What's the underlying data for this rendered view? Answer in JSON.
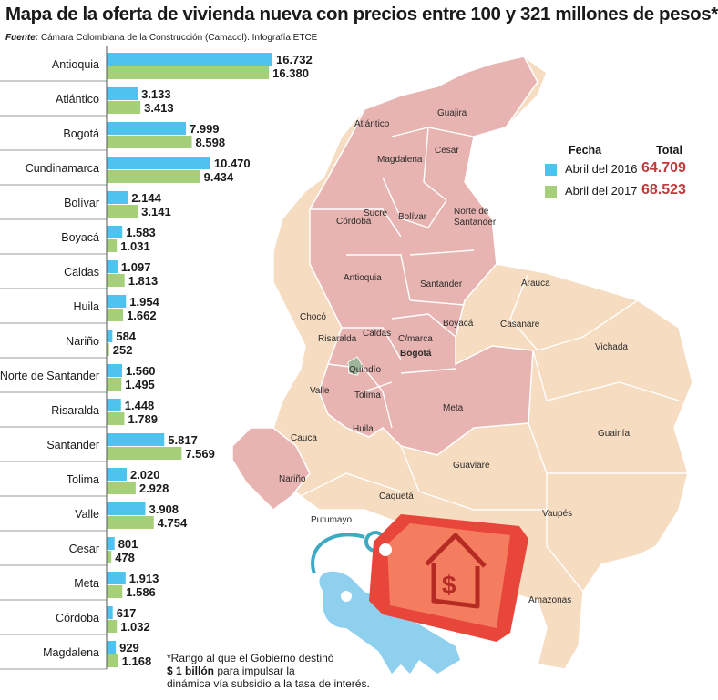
{
  "title": "Mapa de la oferta de vivienda nueva con precios entre 100 y 321 millones de pesos*",
  "source_label": "Fuente:",
  "source_text": "Cámara Colombiana de la Construcción (Camacol). Infografía ETCE",
  "legend": {
    "heading_fecha": "Fecha",
    "heading_total": "Total",
    "items": [
      {
        "label": "Abril del 2016",
        "total": "64.709",
        "color": "#4fc3ef"
      },
      {
        "label": "Abril del 2017",
        "total": "68.523",
        "color": "#a6cf7a"
      }
    ]
  },
  "footnote": {
    "line1": "*Rango al que el Gobierno destinó",
    "amount": "$ 1 billón",
    "line2": " para impulsar la",
    "line3": "dinámica vía subsidio a la tasa de interés."
  },
  "colors": {
    "series_2016": "#4fc3ef",
    "series_2017": "#a6cf7a",
    "highlight_region": "#e8b4b1",
    "other_region": "#f6dcc1",
    "tag": "#e8463b",
    "key": "#8fd0ef",
    "total_text": "#c0393b"
  },
  "chart_data": {
    "type": "bar",
    "orientation": "horizontal",
    "categories": [
      "Antioquia",
      "Atlántico",
      "Bogotá",
      "Cundinamarca",
      "Bolívar",
      "Boyacá",
      "Caldas",
      "Huila",
      "Nariño",
      "Norte de Santander",
      "Risaralda",
      "Santander",
      "Tolima",
      "Valle",
      "Cesar",
      "Meta",
      "Córdoba",
      "Magdalena"
    ],
    "series": [
      {
        "name": "Abril del 2016",
        "values": [
          16732,
          3133,
          7999,
          10470,
          2144,
          1583,
          1097,
          1954,
          584,
          1560,
          1448,
          5817,
          2020,
          3908,
          801,
          1913,
          617,
          929
        ],
        "labels": [
          "16.732",
          "3.133",
          "7.999",
          "10.470",
          "2.144",
          "1.583",
          "1.097",
          "1.954",
          "584",
          "1.560",
          "1.448",
          "5.817",
          "2.020",
          "3.908",
          "801",
          "1.913",
          "617",
          "929"
        ]
      },
      {
        "name": "Abril del 2017",
        "values": [
          16380,
          3413,
          8598,
          9434,
          3141,
          1031,
          1813,
          1662,
          252,
          1495,
          1789,
          7569,
          2928,
          4754,
          478,
          1586,
          1032,
          1168
        ],
        "labels": [
          "16.380",
          "3.413",
          "8.598",
          "9.434",
          "3.141",
          "1.031",
          "1.813",
          "1.662",
          "252",
          "1.495",
          "1.789",
          "7.569",
          "2.928",
          "4.754",
          "478",
          "1.586",
          "1.032",
          "1.168"
        ]
      }
    ],
    "xlim": [
      0,
      16732
    ],
    "grid": false,
    "legend_position": "right"
  },
  "map": {
    "labels": [
      "Atlántico",
      "Guajira",
      "Magdalena",
      "Cesar",
      "Sucre",
      "Bolívar",
      "Córdoba",
      "Norte de",
      "Santander",
      "Antioquia",
      "Santander",
      "Arauca",
      "Chocó",
      "Boyacá",
      "Casanare",
      "Risaralda",
      "Caldas",
      "C/marca",
      "Bogotá",
      "Vichada",
      "Quindío",
      "Valle",
      "Tolima",
      "Meta",
      "Cauca",
      "Huila",
      "Guainía",
      "Nariño",
      "Guaviare",
      "Caquetá",
      "Putumayo",
      "Vaupés",
      "Amazonas"
    ]
  }
}
